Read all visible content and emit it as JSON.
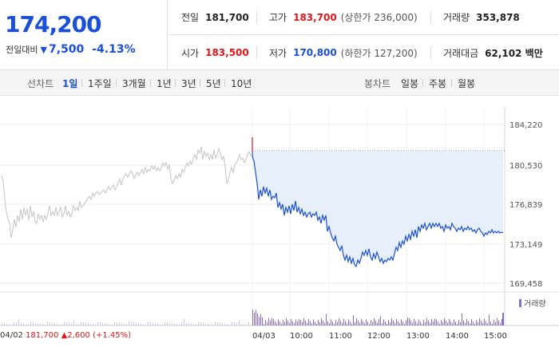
{
  "price": {
    "current": "174,200",
    "change_label": "전일대비",
    "change_abs": "7,500",
    "change_pct": "-4.13%",
    "direction": "down",
    "color": "#1a4fd8"
  },
  "stats": {
    "prev_close": {
      "label": "전일",
      "value": "181,700"
    },
    "high": {
      "label": "고가",
      "value": "183,700",
      "note": "(상한가 236,000)"
    },
    "volume": {
      "label": "거래량",
      "value": "353,878"
    },
    "open": {
      "label": "시가",
      "value": "183,500"
    },
    "low": {
      "label": "저가",
      "value": "170,800",
      "note": "(하한가 127,200)"
    },
    "amount": {
      "label": "거래대금",
      "value": "62,102 백만"
    }
  },
  "toolbar": {
    "line_chart_label": "선차트",
    "ranges": [
      "1일",
      "1주일",
      "3개월",
      "1년",
      "3년",
      "5년",
      "10년"
    ],
    "active_range": "1일",
    "candle_label": "봉차트",
    "candles": [
      "일봉",
      "주봉",
      "월봉"
    ]
  },
  "chart": {
    "y_ticks": [
      "184,220",
      "180,530",
      "176,839",
      "173,149",
      "169,458"
    ],
    "x_ticks": [
      "04/03",
      "10:00",
      "11:00",
      "12:00",
      "13:00",
      "14:00",
      "15:00"
    ],
    "prev_day": {
      "date": "04/02",
      "close": "181,700",
      "change": "2,600",
      "pct": "(+1.45%)"
    },
    "volume_legend": "거래량",
    "colors": {
      "up": "#e0171b",
      "down": "#1a4fd8",
      "fill": "#e6effa",
      "volume": "#8a6fc0",
      "prev_line": "#c8c8c8"
    }
  }
}
